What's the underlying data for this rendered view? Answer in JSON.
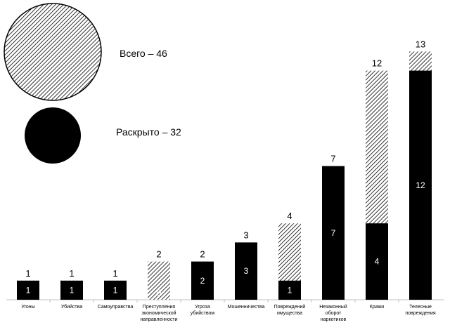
{
  "chart_data": {
    "type": "bar",
    "title": "",
    "xlabel": "",
    "ylabel": "",
    "ylim": [
      0,
      14
    ],
    "grid": false,
    "categories": [
      [
        "Угоны"
      ],
      [
        "Убийства"
      ],
      [
        "Самоуправства"
      ],
      [
        "Преступления",
        "экономической",
        "направленности"
      ],
      [
        "Угроза",
        "убийством"
      ],
      [
        "Мошенничества"
      ],
      [
        "Повреждений",
        "имущества"
      ],
      [
        "Незаконный",
        "оборот",
        "наркотиков"
      ],
      [
        "Кражи"
      ],
      [
        "Телесные",
        "повреждения"
      ]
    ],
    "series": [
      {
        "name": "Всего",
        "values": [
          1,
          1,
          1,
          2,
          2,
          3,
          4,
          7,
          12,
          13
        ],
        "pattern": "hatched"
      },
      {
        "name": "Раскрыто",
        "values": [
          1,
          1,
          1,
          0,
          2,
          3,
          1,
          7,
          4,
          12
        ],
        "color": "#000000"
      }
    ],
    "solved_value_labels": [
      "1",
      "1",
      "1",
      "0",
      "2",
      "3",
      "1",
      "7",
      "4",
      "12"
    ],
    "legend": {
      "total": "Всего – 46",
      "solved": "Раскрыто – 32"
    }
  }
}
